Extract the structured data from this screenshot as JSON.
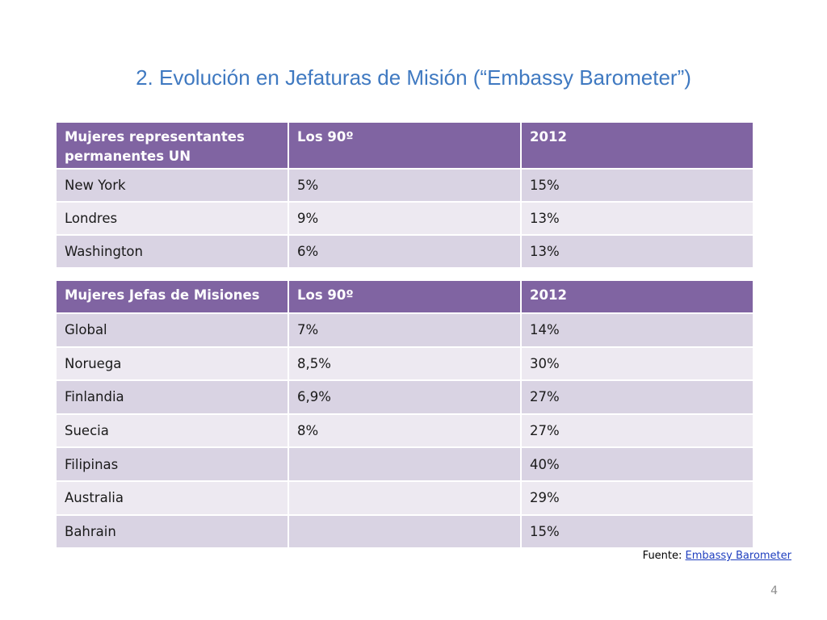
{
  "slide": {
    "title": "2. Evolución en Jefaturas de Misión (“Embassy Barometer”)",
    "page_number": "4"
  },
  "colors": {
    "title": "#3f79c1",
    "header_fill": "#8064a2",
    "row_dark": "#d9d3e3",
    "row_light": "#ede9f1",
    "link": "#1f3fbf"
  },
  "table_un": {
    "headers": [
      "Mujeres representantes permanentes UN",
      "Los 90º",
      "2012"
    ],
    "rows": [
      [
        "New York",
        "5%",
        "15%"
      ],
      [
        "Londres",
        "9%",
        "13%"
      ],
      [
        "Washington",
        "6%",
        "13%"
      ]
    ]
  },
  "table_missions": {
    "headers": [
      "Mujeres Jefas de Misiones",
      "Los 90º",
      "2012"
    ],
    "rows": [
      [
        "Global",
        "7%",
        "14%"
      ],
      [
        "Noruega",
        "8,5%",
        "30%"
      ],
      [
        "Finlandia",
        "6,9%",
        "27%"
      ],
      [
        "Suecia",
        "8%",
        "27%"
      ],
      [
        "Filipinas",
        "",
        "40%"
      ],
      [
        "Australia",
        "",
        "29%"
      ],
      [
        "Bahrain",
        "",
        "15%"
      ]
    ]
  },
  "source": {
    "label": "Fuente:",
    "link_text": "Embassy Barometer"
  }
}
